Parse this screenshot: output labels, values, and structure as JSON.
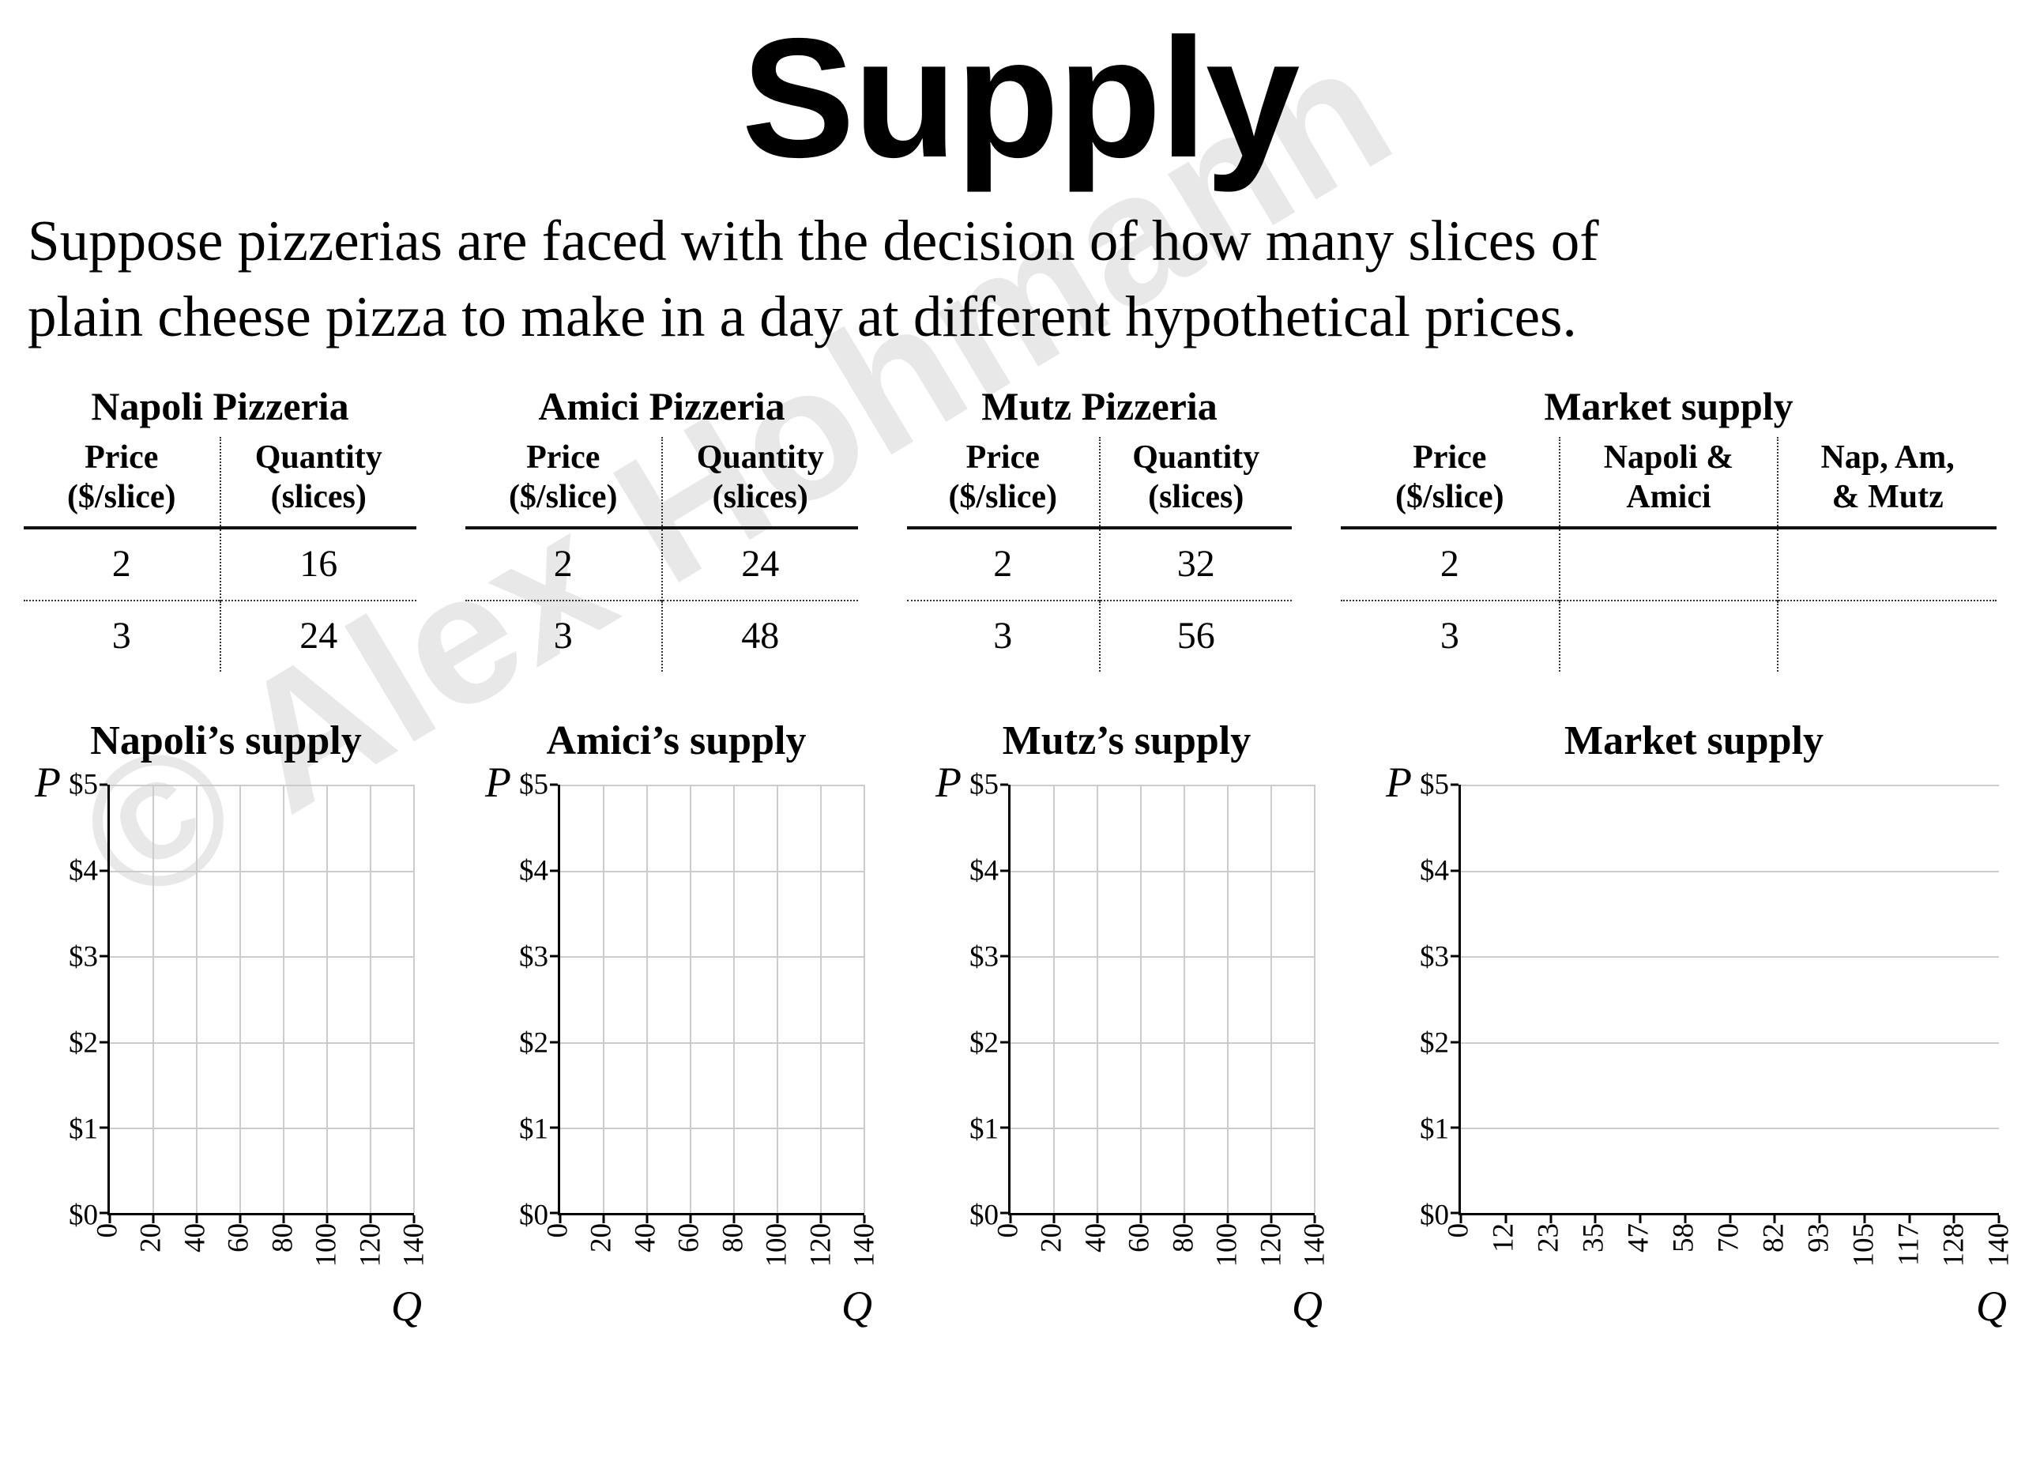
{
  "slide": {
    "title": "Supply",
    "intro": "Suppose pizzerias are faced with the decision of how many slices of\nplain cheese pizza to make in a day at different hypothetical prices.",
    "watermark": "© Alex Hohmann"
  },
  "tables": [
    {
      "title": "Napoli Pizzeria",
      "headers": [
        "Price\n($/slice)",
        "Quantity\n(slices)"
      ],
      "rows": [
        [
          "2",
          "16"
        ],
        [
          "3",
          "24"
        ]
      ]
    },
    {
      "title": "Amici Pizzeria",
      "headers": [
        "Price\n($/slice)",
        "Quantity\n(slices)"
      ],
      "rows": [
        [
          "2",
          "24"
        ],
        [
          "3",
          "48"
        ]
      ]
    },
    {
      "title": "Mutz Pizzeria",
      "headers": [
        "Price\n($/slice)",
        "Quantity\n(slices)"
      ],
      "rows": [
        [
          "2",
          "32"
        ],
        [
          "3",
          "56"
        ]
      ]
    },
    {
      "title": "Market supply",
      "headers": [
        "Price\n($/slice)",
        "Napoli &\nAmici",
        "Nap, Am,\n& Mutz"
      ],
      "rows": [
        [
          "2",
          "",
          ""
        ],
        [
          "3",
          "",
          ""
        ]
      ]
    }
  ],
  "charts": [
    {
      "title": "Napoli’s supply",
      "p_label": "P",
      "q_label": "Q",
      "y_ticks": [
        "$5",
        "$4",
        "$3",
        "$2",
        "$1",
        "$0"
      ],
      "x_ticks": [
        "0",
        "20",
        "40",
        "60",
        "80",
        "100",
        "120",
        "140"
      ],
      "vertical_gridlines": true,
      "series": []
    },
    {
      "title": "Amici’s supply",
      "p_label": "P",
      "q_label": "Q",
      "y_ticks": [
        "$5",
        "$4",
        "$3",
        "$2",
        "$1",
        "$0"
      ],
      "x_ticks": [
        "0",
        "20",
        "40",
        "60",
        "80",
        "100",
        "120",
        "140"
      ],
      "vertical_gridlines": true,
      "series": []
    },
    {
      "title": "Mutz’s supply",
      "p_label": "P",
      "q_label": "Q",
      "y_ticks": [
        "$5",
        "$4",
        "$3",
        "$2",
        "$1",
        "$0"
      ],
      "x_ticks": [
        "0",
        "20",
        "40",
        "60",
        "80",
        "100",
        "120",
        "140"
      ],
      "vertical_gridlines": true,
      "series": []
    },
    {
      "title": "Market supply",
      "p_label": "P",
      "q_label": "Q",
      "y_ticks": [
        "$5",
        "$4",
        "$3",
        "$2",
        "$1",
        "$0"
      ],
      "x_ticks": [
        "0",
        "12",
        "23",
        "35",
        "47",
        "58",
        "70",
        "82",
        "93",
        "105",
        "117",
        "128",
        "140"
      ],
      "vertical_gridlines": false,
      "series": []
    }
  ]
}
